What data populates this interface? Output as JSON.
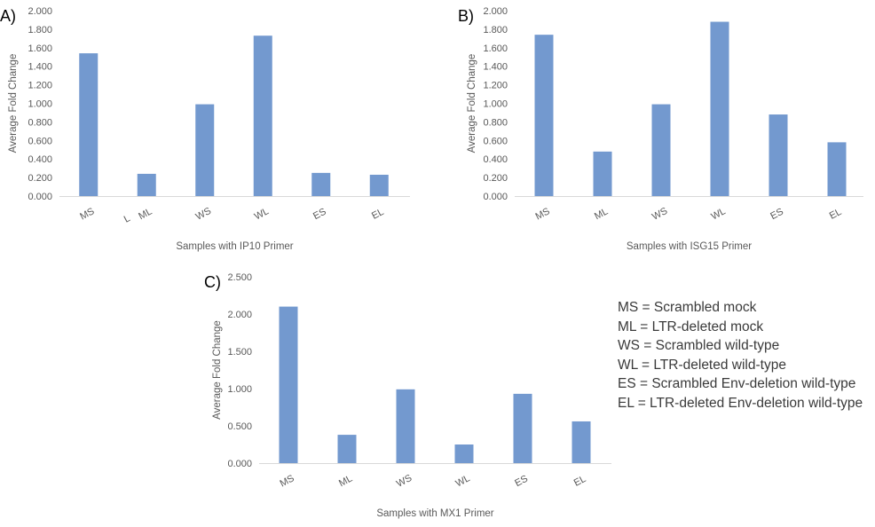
{
  "chart_data": [
    {
      "type": "bar",
      "panel_label": "A)",
      "categories": [
        "MS",
        "ML",
        "WS",
        "WL",
        "ES",
        "EL"
      ],
      "values": [
        1.54,
        0.24,
        0.99,
        1.73,
        0.25,
        0.23
      ],
      "xlabel": "Samples with IP10 Primer",
      "ylabel": "Average Fold Change",
      "ylim": [
        0,
        2.0
      ],
      "yticks": [
        "0.000",
        "0.200",
        "0.400",
        "0.600",
        "0.800",
        "1.000",
        "1.200",
        "1.400",
        "1.600",
        "1.800",
        "2.000"
      ],
      "stray_mark": "L",
      "bar_color": "#7399cf",
      "grid": false
    },
    {
      "type": "bar",
      "panel_label": "B)",
      "categories": [
        "MS",
        "ML",
        "WS",
        "WL",
        "ES",
        "EL"
      ],
      "values": [
        1.74,
        0.48,
        0.99,
        1.88,
        0.88,
        0.58
      ],
      "xlabel": "Samples with ISG15 Primer",
      "ylabel": "Average Fold Change",
      "ylim": [
        0,
        2.0
      ],
      "yticks": [
        "0.000",
        "0.200",
        "0.400",
        "0.600",
        "0.800",
        "1.000",
        "1.200",
        "1.400",
        "1.600",
        "1.800",
        "2.000"
      ],
      "bar_color": "#7399cf",
      "grid": false
    },
    {
      "type": "bar",
      "panel_label": "C)",
      "categories": [
        "MS",
        "ML",
        "WS",
        "WL",
        "ES",
        "EL"
      ],
      "values": [
        2.1,
        0.38,
        0.99,
        0.25,
        0.93,
        0.56
      ],
      "xlabel": "Samples with MX1 Primer",
      "ylabel": "Average Fold Change",
      "ylim": [
        0,
        2.5
      ],
      "yticks": [
        "0.000",
        "0.500",
        "1.000",
        "1.500",
        "2.000",
        "2.500"
      ],
      "bar_color": "#7399cf",
      "grid": false
    }
  ],
  "legend": [
    "MS = Scrambled mock",
    "ML = LTR-deleted mock",
    "WS = Scrambled wild-type",
    "WL = LTR-deleted wild-type",
    "ES = Scrambled Env-deletion wild-type",
    "EL = LTR-deleted Env-deletion wild-type"
  ]
}
